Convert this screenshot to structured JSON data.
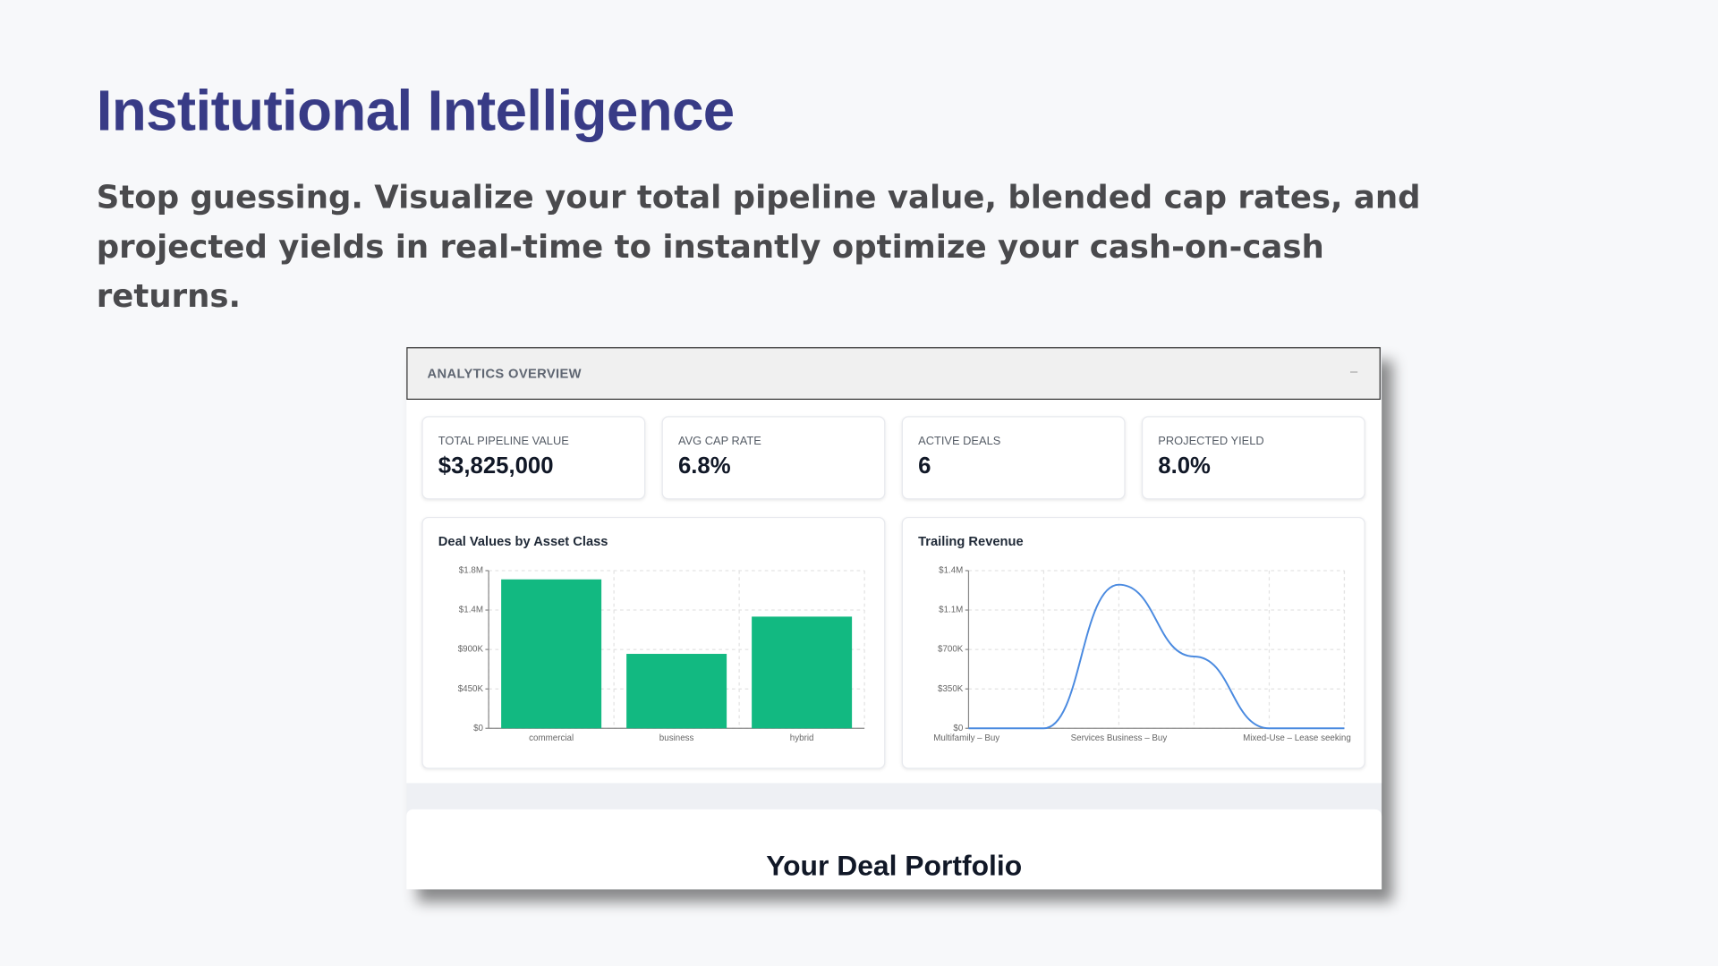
{
  "header": {
    "title": "Institutional Intelligence",
    "subtitle": "Stop guessing. Visualize your total pipeline value, blended cap rates, and projected yields in real-time to instantly optimize your cash-on-cash returns."
  },
  "panel": {
    "title": "ANALYTICS OVERVIEW",
    "collapse": "–",
    "kpis": [
      {
        "label": "TOTAL PIPELINE VALUE",
        "value": "$3,825,000"
      },
      {
        "label": "AVG CAP RATE",
        "value": "6.8%"
      },
      {
        "label": "ACTIVE DEALS",
        "value": "6"
      },
      {
        "label": "PROJECTED YIELD",
        "value": "8.0%"
      }
    ]
  },
  "chart_data": [
    {
      "type": "bar",
      "title": "Deal Values by Asset Class",
      "categories": [
        "commercial",
        "business",
        "hybrid"
      ],
      "values": [
        1700000,
        850000,
        1275000
      ],
      "color": "#12b981",
      "ylim": [
        0,
        1800000
      ],
      "yticks": [
        {
          "value": 0,
          "label": "$0"
        },
        {
          "value": 450000,
          "label": "$450K"
        },
        {
          "value": 900000,
          "label": "$900K"
        },
        {
          "value": 1350000,
          "label": "$1.4M"
        },
        {
          "value": 1800000,
          "label": "$1.8M"
        }
      ],
      "grid": true
    },
    {
      "type": "line",
      "title": "Trailing Revenue",
      "categories": [
        "Multifamily – Buy",
        null,
        "Services Business – Buy",
        null,
        null,
        "Mixed-Use – Lease seeking"
      ],
      "values": [
        0,
        0,
        1275000,
        637500,
        0,
        0
      ],
      "color": "#4a8ae0",
      "ylim": [
        0,
        1400000
      ],
      "yticks": [
        {
          "value": 0,
          "label": "$0"
        },
        {
          "value": 350000,
          "label": "$350K"
        },
        {
          "value": 700000,
          "label": "$700K"
        },
        {
          "value": 1050000,
          "label": "$1.1M"
        },
        {
          "value": 1400000,
          "label": "$1.4M"
        }
      ],
      "grid": true
    }
  ],
  "portfolio": {
    "title": "Your Deal Portfolio"
  }
}
